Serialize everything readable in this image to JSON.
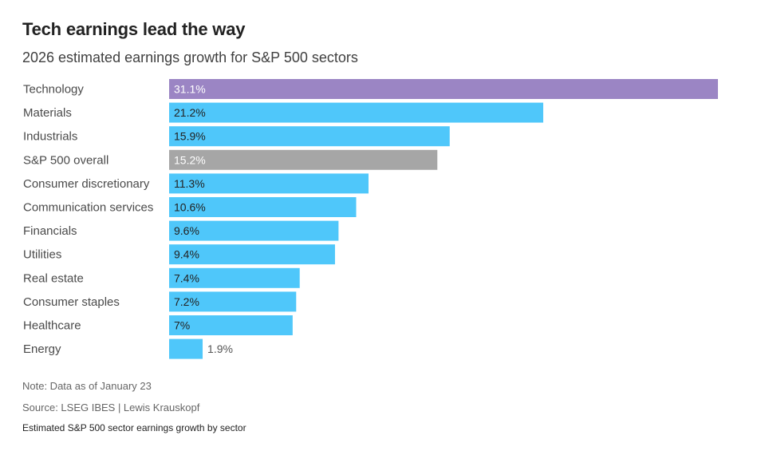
{
  "header": {
    "title": "Tech earnings lead the way",
    "subtitle": "2026 estimated earnings growth for S&P 500 sectors"
  },
  "footer": {
    "note": "Note: Data as of January 23",
    "source": "Source: LSEG IBES | Lewis Krauskopf",
    "caption": "Estimated S&P 500 sector earnings growth by sector"
  },
  "chart_data": {
    "type": "bar",
    "orientation": "horizontal",
    "title": "Tech earnings lead the way",
    "subtitle": "2026 estimated earnings growth for S&P 500 sectors",
    "categories": [
      "Technology",
      "Materials",
      "Industrials",
      "S&P 500 overall",
      "Consumer discretionary",
      "Communication services",
      "Financials",
      "Utilities",
      "Real estate",
      "Consumer staples",
      "Healthcare",
      "Energy"
    ],
    "values": [
      31.1,
      21.2,
      15.9,
      15.2,
      11.3,
      10.6,
      9.6,
      9.4,
      7.4,
      7.2,
      7,
      1.9
    ],
    "value_labels": [
      "31.1%",
      "21.2%",
      "15.9%",
      "15.2%",
      "11.3%",
      "10.6%",
      "9.6%",
      "9.4%",
      "7.4%",
      "7.2%",
      "7%",
      "1.9%"
    ],
    "colors": [
      "#9b85c4",
      "#4fc7fa",
      "#4fc7fa",
      "#a6a6a6",
      "#4fc7fa",
      "#4fc7fa",
      "#4fc7fa",
      "#4fc7fa",
      "#4fc7fa",
      "#4fc7fa",
      "#4fc7fa",
      "#4fc7fa"
    ],
    "xlim": [
      0,
      31.1
    ],
    "grid": false,
    "axes_shown": false
  }
}
